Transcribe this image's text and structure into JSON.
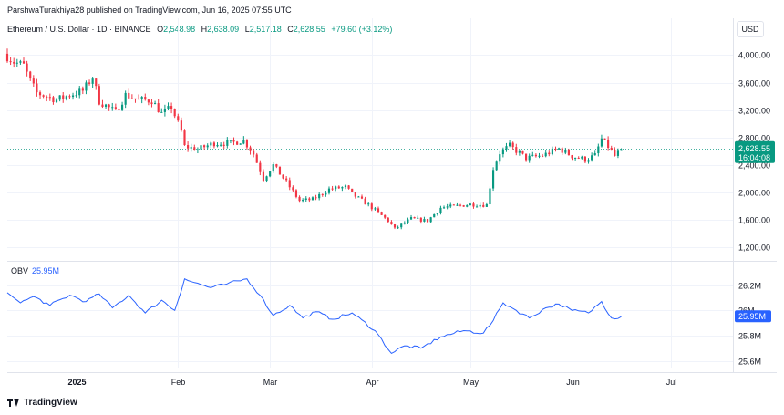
{
  "header": {
    "attribution": "ParshwaTurakhiya28 published on TradingView.com, Jun 16, 2025 07:55 UTC"
  },
  "legend": {
    "symbol": "Ethereum / U.S. Dollar · 1D · BINANCE",
    "o_label": "O",
    "o_value": "2,548.98",
    "h_label": "H",
    "h_value": "2,638.09",
    "l_label": "L",
    "l_value": "2,517.18",
    "c_label": "C",
    "c_value": "2,628.55",
    "change": "+79.60 (+3.12%)"
  },
  "currency_button": "USD",
  "price_tag": {
    "price": "2,628.55",
    "countdown": "16:04:08"
  },
  "obv": {
    "label": "OBV",
    "value": "25.95M"
  },
  "footer": {
    "logo_text": "TradingView"
  },
  "colors": {
    "up": "#089981",
    "down": "#f23645",
    "obv_line": "#2962ff",
    "grid": "#f0f3fa"
  },
  "chart_data": [
    {
      "type": "candlestick",
      "title": "Ethereum / U.S. Dollar · 1D · BINANCE",
      "currency": "USD",
      "x_range": [
        "2024-12-11",
        "2025-07-20"
      ],
      "x_ticks": [
        {
          "label": "2025",
          "date": "2025-01-01"
        },
        {
          "label": "Feb",
          "date": "2025-02-01"
        },
        {
          "label": "Mar",
          "date": "2025-03-01"
        },
        {
          "label": "Apr",
          "date": "2025-04-01"
        },
        {
          "label": "May",
          "date": "2025-05-01"
        },
        {
          "label": "Jun",
          "date": "2025-06-01"
        },
        {
          "label": "Jul",
          "date": "2025-07-01"
        }
      ],
      "y_ticks": [
        "4,000.00",
        "3,600.00",
        "3,200.00",
        "2,800.00",
        "2,400.00",
        "2,000.00",
        "1,600.00",
        "1,200.00"
      ],
      "y_tick_values": [
        4000,
        3600,
        3200,
        2800,
        2400,
        2000,
        1600,
        1200
      ],
      "ylim": [
        1060,
        4350
      ],
      "last_price": 2628.55,
      "close_keypoints": [
        [
          "2024-12-11",
          3980
        ],
        [
          "2024-12-13",
          3900
        ],
        [
          "2024-12-16",
          3850
        ],
        [
          "2024-12-18",
          3620
        ],
        [
          "2024-12-20",
          3450
        ],
        [
          "2024-12-23",
          3400
        ],
        [
          "2024-12-26",
          3350
        ],
        [
          "2024-12-30",
          3420
        ],
        [
          "2025-01-03",
          3480
        ],
        [
          "2025-01-06",
          3680
        ],
        [
          "2025-01-08",
          3330
        ],
        [
          "2025-01-13",
          3170
        ],
        [
          "2025-01-16",
          3420
        ],
        [
          "2025-01-20",
          3350
        ],
        [
          "2025-01-24",
          3340
        ],
        [
          "2025-01-27",
          3150
        ],
        [
          "2025-01-30",
          3240
        ],
        [
          "2025-02-02",
          2890
        ],
        [
          "2025-02-03",
          2670
        ],
        [
          "2025-02-07",
          2630
        ],
        [
          "2025-02-12",
          2720
        ],
        [
          "2025-02-17",
          2720
        ],
        [
          "2025-02-21",
          2760
        ],
        [
          "2025-02-24",
          2560
        ],
        [
          "2025-02-27",
          2200
        ],
        [
          "2025-03-02",
          2400
        ],
        [
          "2025-03-06",
          2150
        ],
        [
          "2025-03-10",
          1880
        ],
        [
          "2025-03-14",
          1900
        ],
        [
          "2025-03-19",
          2050
        ],
        [
          "2025-03-24",
          2080
        ],
        [
          "2025-03-26",
          1980
        ],
        [
          "2025-03-31",
          1820
        ],
        [
          "2025-04-06",
          1590
        ],
        [
          "2025-04-08",
          1470
        ],
        [
          "2025-04-13",
          1620
        ],
        [
          "2025-04-18",
          1590
        ],
        [
          "2025-04-22",
          1780
        ],
        [
          "2025-04-26",
          1800
        ],
        [
          "2025-05-01",
          1830
        ],
        [
          "2025-05-06",
          1820
        ],
        [
          "2025-05-08",
          2350
        ],
        [
          "2025-05-10",
          2580
        ],
        [
          "2025-05-13",
          2680
        ],
        [
          "2025-05-18",
          2500
        ],
        [
          "2025-05-23",
          2540
        ],
        [
          "2025-05-28",
          2640
        ],
        [
          "2025-06-01",
          2530
        ],
        [
          "2025-06-05",
          2480
        ],
        [
          "2025-06-08",
          2540
        ],
        [
          "2025-06-10",
          2780
        ],
        [
          "2025-06-12",
          2670
        ],
        [
          "2025-06-14",
          2530
        ],
        [
          "2025-06-16",
          2628.55
        ]
      ]
    },
    {
      "type": "line",
      "title": "OBV",
      "y_ticks": [
        "26.2M",
        "26M",
        "25.8M",
        "25.6M"
      ],
      "y_tick_values": [
        26.2,
        26.0,
        25.8,
        25.6
      ],
      "ylim": [
        25.54,
        26.32
      ],
      "last_value": 25.95,
      "series": [
        {
          "name": "OBV",
          "points": [
            [
              "2024-12-11",
              26.14
            ],
            [
              "2024-12-15",
              26.06
            ],
            [
              "2024-12-19",
              26.11
            ],
            [
              "2024-12-24",
              26.04
            ],
            [
              "2024-12-30",
              26.12
            ],
            [
              "2025-01-04",
              26.07
            ],
            [
              "2025-01-08",
              26.13
            ],
            [
              "2025-01-12",
              26.02
            ],
            [
              "2025-01-17",
              26.12
            ],
            [
              "2025-01-22",
              25.98
            ],
            [
              "2025-01-27",
              26.08
            ],
            [
              "2025-01-31",
              26.0
            ],
            [
              "2025-02-03",
              26.25
            ],
            [
              "2025-02-06",
              26.22
            ],
            [
              "2025-02-11",
              26.18
            ],
            [
              "2025-02-16",
              26.21
            ],
            [
              "2025-02-22",
              26.25
            ],
            [
              "2025-02-26",
              26.12
            ],
            [
              "2025-03-02",
              25.96
            ],
            [
              "2025-03-07",
              26.04
            ],
            [
              "2025-03-11",
              25.94
            ],
            [
              "2025-03-15",
              25.99
            ],
            [
              "2025-03-20",
              25.93
            ],
            [
              "2025-03-26",
              25.98
            ],
            [
              "2025-04-02",
              25.84
            ],
            [
              "2025-04-07",
              25.66
            ],
            [
              "2025-04-11",
              25.72
            ],
            [
              "2025-04-16",
              25.7
            ],
            [
              "2025-04-22",
              25.79
            ],
            [
              "2025-04-29",
              25.84
            ],
            [
              "2025-05-05",
              25.82
            ],
            [
              "2025-05-08",
              25.92
            ],
            [
              "2025-05-11",
              26.06
            ],
            [
              "2025-05-15",
              26.0
            ],
            [
              "2025-05-19",
              25.94
            ],
            [
              "2025-05-24",
              26.02
            ],
            [
              "2025-05-28",
              26.05
            ],
            [
              "2025-06-01",
              26.0
            ],
            [
              "2025-06-06",
              25.98
            ],
            [
              "2025-06-10",
              26.07
            ],
            [
              "2025-06-13",
              25.94
            ],
            [
              "2025-06-16",
              25.95
            ]
          ]
        }
      ]
    }
  ]
}
